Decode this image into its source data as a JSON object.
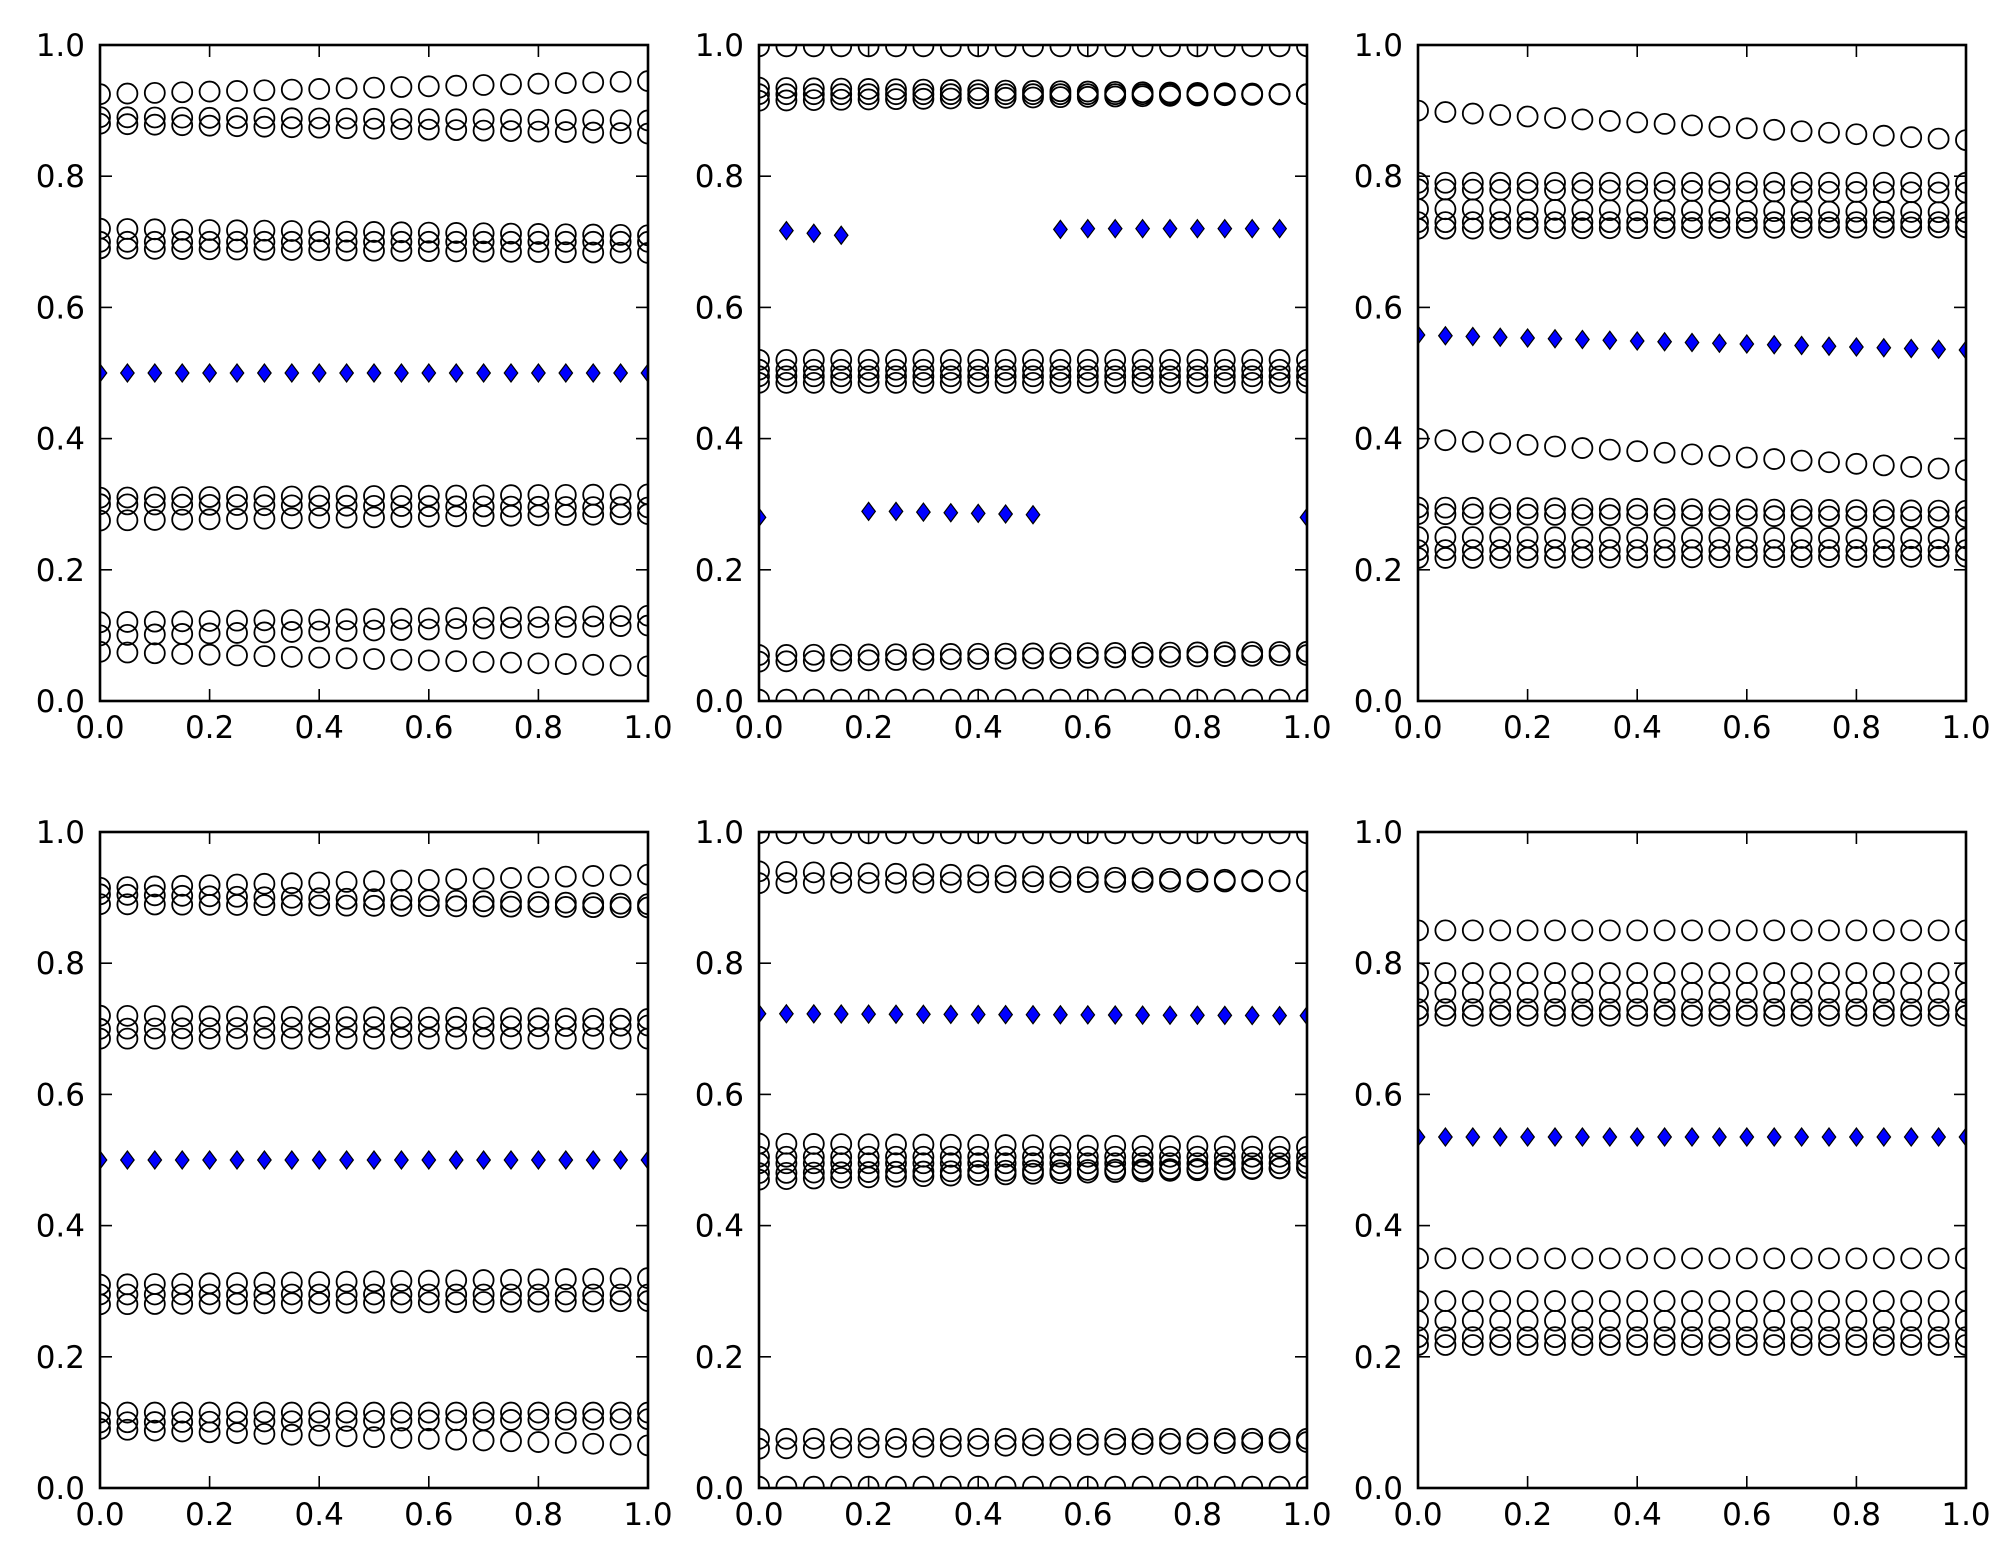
{
  "figure": {
    "ticks": [
      "0.0",
      "0.2",
      "0.4",
      "0.6",
      "0.8",
      "1.0"
    ],
    "colors": {
      "diamond_fill": "#0000ff",
      "marker_edge": "#000000",
      "circle_fill": "none"
    }
  },
  "chart_data": [
    {
      "type": "scatter",
      "xlim": [
        0,
        1
      ],
      "ylim": [
        0,
        1
      ],
      "xticks": [
        0,
        0.2,
        0.4,
        0.6,
        0.8,
        1.0
      ],
      "yticks": [
        0,
        0.2,
        0.4,
        0.6,
        0.8,
        1.0
      ],
      "x": [
        0,
        0.05,
        0.1,
        0.15,
        0.2,
        0.25,
        0.3,
        0.35,
        0.4,
        0.45,
        0.5,
        0.55,
        0.6,
        0.65,
        0.7,
        0.75,
        0.8,
        0.85,
        0.9,
        0.95,
        1.0
      ],
      "circles": [
        {
          "start": 0.925,
          "end": 0.945
        },
        {
          "start": 0.89,
          "end": 0.885
        },
        {
          "start": 0.88,
          "end": 0.865
        },
        {
          "start": 0.72,
          "end": 0.71
        },
        {
          "start": 0.7,
          "end": 0.7
        },
        {
          "start": 0.69,
          "end": 0.683
        },
        {
          "start": 0.31,
          "end": 0.315
        },
        {
          "start": 0.3,
          "end": 0.295
        },
        {
          "start": 0.275,
          "end": 0.285
        },
        {
          "start": 0.12,
          "end": 0.13
        },
        {
          "start": 0.1,
          "end": 0.115
        },
        {
          "start": 0.075,
          "end": 0.053
        }
      ],
      "diamonds": {
        "start": 0.5,
        "end": 0.5
      }
    },
    {
      "type": "scatter",
      "xlim": [
        0,
        1
      ],
      "ylim": [
        0,
        1
      ],
      "xticks": [
        0,
        0.2,
        0.4,
        0.6,
        0.8,
        1.0
      ],
      "yticks": [
        0,
        0.2,
        0.4,
        0.6,
        0.8,
        1.0
      ],
      "x": [
        0,
        0.05,
        0.1,
        0.15,
        0.2,
        0.25,
        0.3,
        0.35,
        0.4,
        0.45,
        0.5,
        0.55,
        0.6,
        0.65,
        0.7,
        0.75,
        0.8,
        0.85,
        0.9,
        0.95,
        1.0
      ],
      "circles": [
        {
          "start": 0.998,
          "end": 0.998
        },
        {
          "start": 0.935,
          "end": 0.925
        },
        {
          "start": 0.925,
          "end": 0.925
        },
        {
          "start": 0.915,
          "end": 0.925
        },
        {
          "start": 0.52,
          "end": 0.52
        },
        {
          "start": 0.505,
          "end": 0.505
        },
        {
          "start": 0.495,
          "end": 0.495
        },
        {
          "start": 0.485,
          "end": 0.485
        },
        {
          "start": 0.07,
          "end": 0.075
        },
        {
          "start": 0.06,
          "end": 0.07
        },
        {
          "start": 0.002,
          "end": 0.002
        }
      ],
      "diamond_points": [
        [
          0,
          0.28
        ],
        [
          0.05,
          0.717
        ],
        [
          0.1,
          0.713
        ],
        [
          0.15,
          0.71
        ],
        [
          0.2,
          0.289
        ],
        [
          0.25,
          0.289
        ],
        [
          0.3,
          0.288
        ],
        [
          0.35,
          0.287
        ],
        [
          0.4,
          0.286
        ],
        [
          0.45,
          0.285
        ],
        [
          0.5,
          0.284
        ],
        [
          0.55,
          0.719
        ],
        [
          0.6,
          0.72
        ],
        [
          0.65,
          0.72
        ],
        [
          0.7,
          0.72
        ],
        [
          0.75,
          0.72
        ],
        [
          0.8,
          0.72
        ],
        [
          0.85,
          0.72
        ],
        [
          0.9,
          0.72
        ],
        [
          0.95,
          0.72
        ],
        [
          1.0,
          0.28
        ]
      ]
    },
    {
      "type": "scatter",
      "xlim": [
        0,
        1
      ],
      "ylim": [
        0,
        1
      ],
      "xticks": [
        0,
        0.2,
        0.4,
        0.6,
        0.8,
        1.0
      ],
      "yticks": [
        0,
        0.2,
        0.4,
        0.6,
        0.8,
        1.0
      ],
      "x": [
        0,
        0.05,
        0.1,
        0.15,
        0.2,
        0.25,
        0.3,
        0.35,
        0.4,
        0.45,
        0.5,
        0.55,
        0.6,
        0.65,
        0.7,
        0.75,
        0.8,
        0.85,
        0.9,
        0.95,
        1.0
      ],
      "circles": [
        {
          "start": 0.9,
          "end": 0.855
        },
        {
          "start": 0.79,
          "end": 0.79
        },
        {
          "start": 0.78,
          "end": 0.775
        },
        {
          "start": 0.75,
          "end": 0.745
        },
        {
          "start": 0.73,
          "end": 0.73
        },
        {
          "start": 0.72,
          "end": 0.722
        },
        {
          "start": 0.4,
          "end": 0.352
        },
        {
          "start": 0.295,
          "end": 0.29
        },
        {
          "start": 0.285,
          "end": 0.28
        },
        {
          "start": 0.25,
          "end": 0.248
        },
        {
          "start": 0.23,
          "end": 0.23
        },
        {
          "start": 0.218,
          "end": 0.22
        }
      ],
      "diamonds": {
        "start": 0.558,
        "end": 0.535
      }
    },
    {
      "type": "scatter",
      "xlim": [
        0,
        1
      ],
      "ylim": [
        0,
        1
      ],
      "xticks": [
        0,
        0.2,
        0.4,
        0.6,
        0.8,
        1.0
      ],
      "yticks": [
        0,
        0.2,
        0.4,
        0.6,
        0.8,
        1.0
      ],
      "x": [
        0,
        0.05,
        0.1,
        0.15,
        0.2,
        0.25,
        0.3,
        0.35,
        0.4,
        0.45,
        0.5,
        0.55,
        0.6,
        0.65,
        0.7,
        0.75,
        0.8,
        0.85,
        0.9,
        0.95,
        1.0
      ],
      "circles": [
        {
          "start": 0.915,
          "end": 0.935
        },
        {
          "start": 0.905,
          "end": 0.89
        },
        {
          "start": 0.89,
          "end": 0.885
        },
        {
          "start": 0.72,
          "end": 0.715
        },
        {
          "start": 0.7,
          "end": 0.705
        },
        {
          "start": 0.685,
          "end": 0.685
        },
        {
          "start": 0.31,
          "end": 0.32
        },
        {
          "start": 0.295,
          "end": 0.295
        },
        {
          "start": 0.28,
          "end": 0.285
        },
        {
          "start": 0.115,
          "end": 0.115
        },
        {
          "start": 0.1,
          "end": 0.105
        },
        {
          "start": 0.09,
          "end": 0.065
        }
      ],
      "diamonds": {
        "start": 0.5,
        "end": 0.5
      }
    },
    {
      "type": "scatter",
      "xlim": [
        0,
        1
      ],
      "ylim": [
        0,
        1
      ],
      "xticks": [
        0,
        0.2,
        0.4,
        0.6,
        0.8,
        1.0
      ],
      "yticks": [
        0,
        0.2,
        0.4,
        0.6,
        0.8,
        1.0
      ],
      "x": [
        0,
        0.05,
        0.1,
        0.15,
        0.2,
        0.25,
        0.3,
        0.35,
        0.4,
        0.45,
        0.5,
        0.55,
        0.6,
        0.65,
        0.7,
        0.75,
        0.8,
        0.85,
        0.9,
        0.95,
        1.0
      ],
      "circles": [
        {
          "start": 0.998,
          "end": 0.998
        },
        {
          "start": 0.94,
          "end": 0.925
        },
        {
          "start": 0.922,
          "end": 0.925
        },
        {
          "start": 0.525,
          "end": 0.52
        },
        {
          "start": 0.505,
          "end": 0.505
        },
        {
          "start": 0.495,
          "end": 0.495
        },
        {
          "start": 0.48,
          "end": 0.488
        },
        {
          "start": 0.47,
          "end": 0.488
        },
        {
          "start": 0.075,
          "end": 0.075
        },
        {
          "start": 0.06,
          "end": 0.07
        },
        {
          "start": 0.002,
          "end": 0.002
        }
      ],
      "diamonds": {
        "start": 0.723,
        "end": 0.72
      }
    },
    {
      "type": "scatter",
      "xlim": [
        0,
        1
      ],
      "ylim": [
        0,
        1
      ],
      "xticks": [
        0,
        0.2,
        0.4,
        0.6,
        0.8,
        1.0
      ],
      "yticks": [
        0,
        0.2,
        0.4,
        0.6,
        0.8,
        1.0
      ],
      "x": [
        0,
        0.05,
        0.1,
        0.15,
        0.2,
        0.25,
        0.3,
        0.35,
        0.4,
        0.45,
        0.5,
        0.55,
        0.6,
        0.65,
        0.7,
        0.75,
        0.8,
        0.85,
        0.9,
        0.95,
        1.0
      ],
      "circles": [
        {
          "start": 0.85,
          "end": 0.85
        },
        {
          "start": 0.785,
          "end": 0.785
        },
        {
          "start": 0.755,
          "end": 0.755
        },
        {
          "start": 0.73,
          "end": 0.73
        },
        {
          "start": 0.72,
          "end": 0.72
        },
        {
          "start": 0.35,
          "end": 0.35
        },
        {
          "start": 0.285,
          "end": 0.285
        },
        {
          "start": 0.255,
          "end": 0.255
        },
        {
          "start": 0.23,
          "end": 0.23
        },
        {
          "start": 0.218,
          "end": 0.218
        }
      ],
      "diamonds": {
        "start": 0.535,
        "end": 0.535
      }
    }
  ]
}
